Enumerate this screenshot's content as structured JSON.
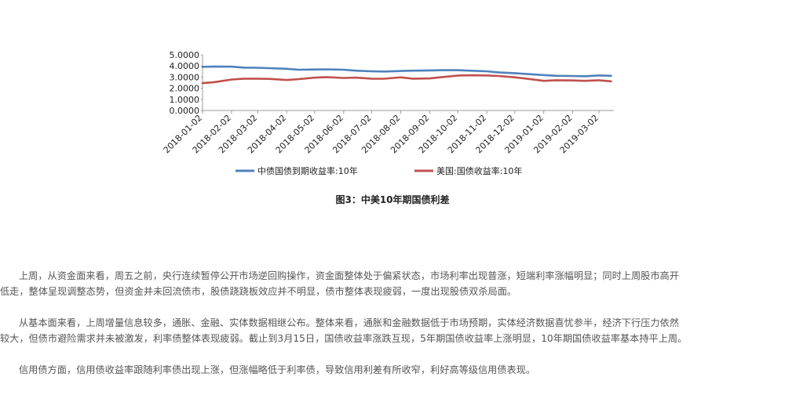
{
  "chart_data": {
    "type": "line",
    "title": "",
    "xlabel": "",
    "ylabel": "",
    "ylim": [
      0,
      5
    ],
    "y_ticks": [
      "5.0000",
      "4.0000",
      "3.0000",
      "2.0000",
      "1.0000",
      "0.0000"
    ],
    "x_ticks": [
      "2018-01-02",
      "2018-02-02",
      "2018-03-02",
      "2018-04-02",
      "2018-05-02",
      "2018-06-02",
      "2018-07-02",
      "2018-08-02",
      "2018-09-02",
      "2018-10-02",
      "2018-11-02",
      "2018-12-02",
      "2019-01-02",
      "2019-02-02",
      "2019-03-02"
    ],
    "x": [
      "2018-01-02",
      "2018-01-15",
      "2018-02-02",
      "2018-02-15",
      "2018-03-02",
      "2018-03-15",
      "2018-04-02",
      "2018-04-15",
      "2018-05-02",
      "2018-05-15",
      "2018-06-02",
      "2018-06-15",
      "2018-07-02",
      "2018-07-15",
      "2018-08-02",
      "2018-08-15",
      "2018-09-02",
      "2018-09-15",
      "2018-10-02",
      "2018-10-15",
      "2018-11-02",
      "2018-11-15",
      "2018-12-02",
      "2018-12-15",
      "2019-01-02",
      "2019-01-15",
      "2019-02-02",
      "2019-02-15",
      "2019-03-02",
      "2019-03-15"
    ],
    "series": [
      {
        "name": "中债国债到期收益率:10年",
        "color": "#4f81bd",
        "values": [
          3.92,
          3.95,
          3.94,
          3.85,
          3.84,
          3.8,
          3.75,
          3.66,
          3.68,
          3.7,
          3.66,
          3.58,
          3.52,
          3.5,
          3.55,
          3.58,
          3.6,
          3.62,
          3.62,
          3.58,
          3.52,
          3.42,
          3.35,
          3.28,
          3.18,
          3.12,
          3.1,
          3.08,
          3.15,
          3.12
        ]
      },
      {
        "name": "美国:国债收益率:10年",
        "color": "#c0504d",
        "values": [
          2.46,
          2.55,
          2.78,
          2.86,
          2.86,
          2.84,
          2.74,
          2.82,
          2.95,
          3.0,
          2.92,
          2.95,
          2.86,
          2.85,
          2.98,
          2.86,
          2.88,
          3.0,
          3.14,
          3.16,
          3.15,
          3.1,
          2.98,
          2.86,
          2.66,
          2.72,
          2.7,
          2.66,
          2.72,
          2.62
        ]
      }
    ],
    "legend_position": "bottom",
    "grid": false
  },
  "caption": "图3：中美10年期国债利差",
  "paragraphs": [
    {
      "line1": "上周，从资金面来看，周五之前，央行连续暂停公开市场逆回购操作，资金面整体处于偏紧状态，市场利率出现普涨，短端利率涨幅明显；同时上周股市高开",
      "line2": "低走，整体呈现调整态势，但资金并未回流债市，股债跷跷板效应并不明显，债市整体表现疲弱，一度出现股债双杀局面。"
    },
    {
      "line1": "从基本面来看，上周增量信息较多，通胀、金融、实体数据相继公布。整体来看，通胀和金融数据低于市场预期，实体经济数据喜忧参半，经济下行压力依然",
      "line2": "较大，但债市避险需求并未被激发，利率债整体表现疲弱。截止到3月15日，国债收益率涨跌互现，5年期国债收益率上涨明显，10年期国债收益率基本持平上周。"
    },
    {
      "line1": "信用债方面，信用债收益率跟随利率债出现上涨，但涨幅略低于利率债，导致信用利差有所收窄，利好高等级信用债表现。",
      "line2": ""
    }
  ]
}
